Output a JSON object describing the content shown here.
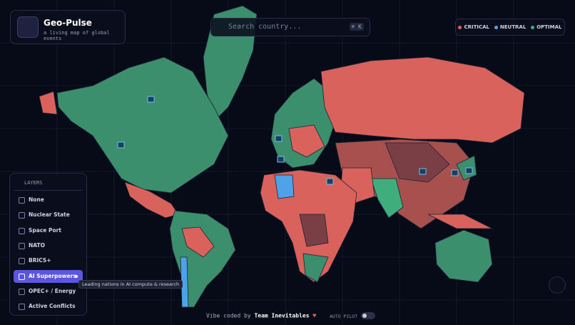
{
  "header": {
    "title": "Geo-Pulse",
    "subtitle": "a living map of global events"
  },
  "search": {
    "placeholder": "Search country...",
    "shortcut": "⌘ K"
  },
  "legend": [
    {
      "label": "CRITICAL",
      "color": "#d9625c"
    },
    {
      "label": "NEUTRAL",
      "color": "#4ea3e8"
    },
    {
      "label": "OPTIMAL",
      "color": "#3fae7c"
    }
  ],
  "layers": {
    "title": "LAYERS",
    "tooltip": "Leading nations in AI compute & research",
    "items": [
      {
        "label": "None",
        "active": false
      },
      {
        "label": "Nuclear State",
        "active": false
      },
      {
        "label": "Space Port",
        "active": false
      },
      {
        "label": "NATO",
        "active": false
      },
      {
        "label": "BRICS+",
        "active": false
      },
      {
        "label": "AI Superpowers",
        "active": true
      },
      {
        "label": "OPEC+ / Energy",
        "active": false
      },
      {
        "label": "Active Conflicts",
        "active": false
      }
    ]
  },
  "footer": {
    "prefix": "Vibe coded by",
    "team": "Team Inevitables",
    "toggle": "AUTO PILOT"
  }
}
